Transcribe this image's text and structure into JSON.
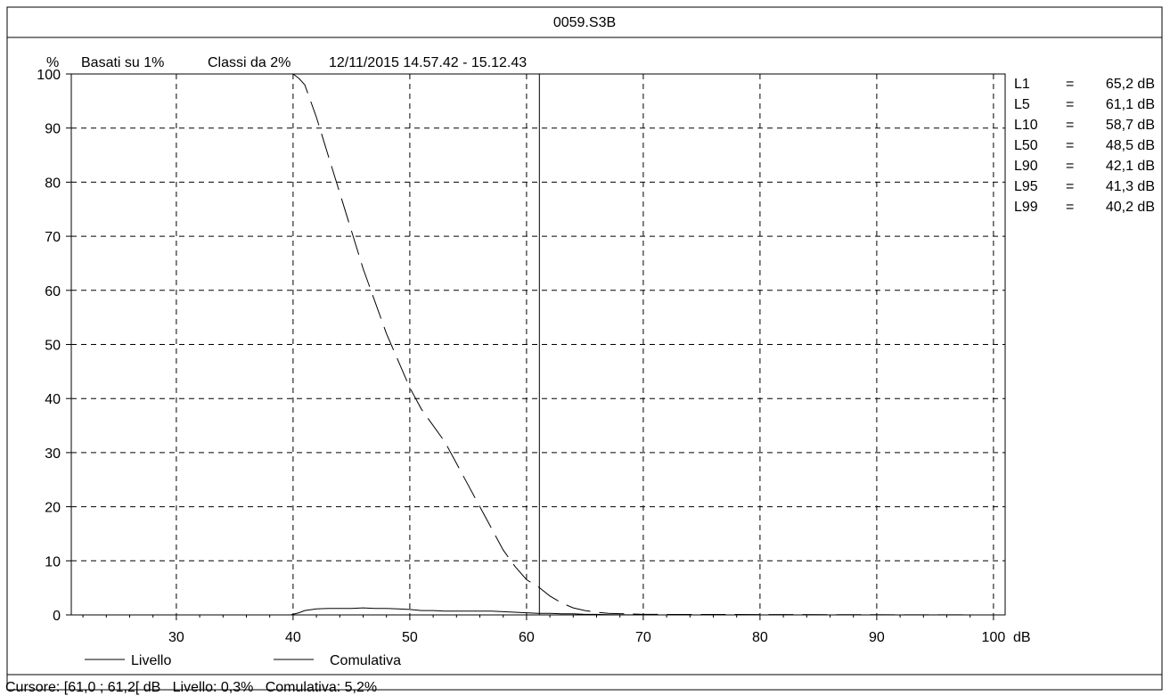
{
  "title": "0059.S3B",
  "subtitle": {
    "unit": "%",
    "basis": "Basati su 1%",
    "classes": "Classi da 2%",
    "period": "12/11/2015 14.57.42 - 15.12.43"
  },
  "stats": [
    {
      "label": "L1",
      "eq": "=",
      "value": "65,2 dB"
    },
    {
      "label": "L5",
      "eq": "=",
      "value": "61,1 dB"
    },
    {
      "label": "L10",
      "eq": "=",
      "value": "58,7 dB"
    },
    {
      "label": "L50",
      "eq": "=",
      "value": "48,5 dB"
    },
    {
      "label": "L90",
      "eq": "=",
      "value": "42,1 dB"
    },
    {
      "label": "L95",
      "eq": "=",
      "value": "41,3 dB"
    },
    {
      "label": "L99",
      "eq": "=",
      "value": "40,2 dB"
    }
  ],
  "legend": {
    "livello": "Livello",
    "comulativa": "Comulativa"
  },
  "status": "Cursore: [61,0 ; 61,2[ dB   Livello: 0,3%   Comulativa: 5,2%",
  "chart_data": {
    "type": "line",
    "xlabel": "dB",
    "ylabel": "%",
    "xlim": [
      21,
      101
    ],
    "ylim": [
      0,
      100
    ],
    "xticks": [
      30,
      40,
      50,
      60,
      70,
      80,
      90,
      100
    ],
    "yticks": [
      0,
      10,
      20,
      30,
      40,
      50,
      60,
      70,
      80,
      90,
      100
    ],
    "grid": true,
    "cursor_x": 61.1,
    "series": [
      {
        "name": "Livello",
        "style": "solid",
        "x": [
          21,
          39.8,
          40.5,
          41,
          42,
          43,
          44,
          45,
          46,
          47,
          48,
          49,
          50,
          51,
          52,
          53,
          54,
          55,
          56,
          57,
          58,
          59,
          60,
          61,
          62,
          63,
          64,
          65,
          66,
          67,
          70,
          101
        ],
        "y": [
          0,
          0,
          0.4,
          0.8,
          1.1,
          1.2,
          1.2,
          1.2,
          1.3,
          1.2,
          1.2,
          1.1,
          1.0,
          0.8,
          0.8,
          0.7,
          0.7,
          0.7,
          0.7,
          0.7,
          0.6,
          0.5,
          0.4,
          0.3,
          0.3,
          0.2,
          0.2,
          0.1,
          0.1,
          0.05,
          0,
          0
        ]
      },
      {
        "name": "Comulativa",
        "style": "dashed",
        "x": [
          40,
          40.5,
          41,
          42,
          43,
          44,
          45,
          46,
          47,
          48,
          49,
          50,
          51,
          52,
          53,
          54,
          55,
          56,
          57,
          58,
          59,
          60,
          61,
          62,
          63,
          64,
          65,
          66,
          67,
          70,
          101
        ],
        "y": [
          100,
          99.2,
          98,
          92,
          85,
          78,
          71,
          64,
          58,
          52,
          47,
          42,
          38,
          35,
          32,
          28,
          24,
          20,
          16,
          12,
          9,
          6.5,
          5.2,
          3.5,
          2.2,
          1.3,
          0.8,
          0.5,
          0.3,
          0.1,
          0
        ]
      }
    ]
  }
}
